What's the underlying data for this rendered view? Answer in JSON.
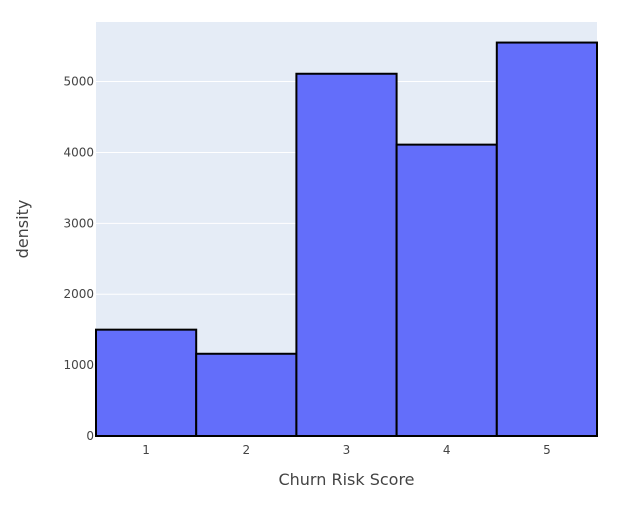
{
  "chart_data": {
    "type": "bar",
    "categories": [
      "1",
      "2",
      "3",
      "4",
      "5"
    ],
    "values": [
      1500,
      1160,
      5110,
      4110,
      5550
    ],
    "xlabel": "Churn Risk Score",
    "ylabel": "density",
    "ylim": [
      0,
      5840
    ],
    "y_ticks": [
      0,
      1000,
      2000,
      3000,
      4000,
      5000
    ],
    "grid": true,
    "colors": {
      "bar_fill": "#636efa",
      "bar_stroke": "#000000",
      "plot_background": "#e5ecf6",
      "grid": "#ffffff",
      "text": "#444444"
    }
  }
}
